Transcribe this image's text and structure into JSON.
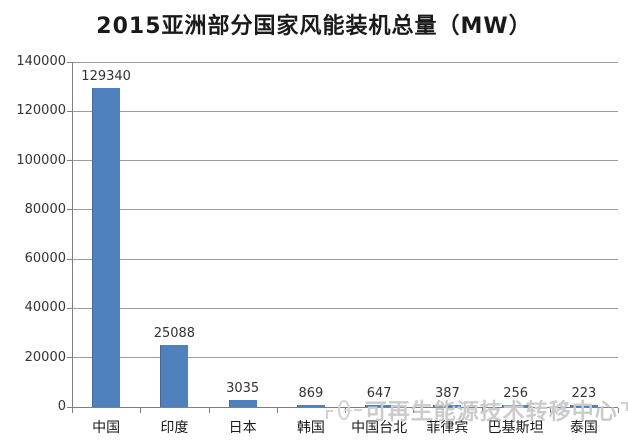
{
  "title": "2015亚洲部分国家风能装机总量（MW）",
  "watermark": {
    "text": "可再生能源技术转移中心"
  },
  "colors": {
    "bar": "#4f81bd",
    "gridline": "#9c9c9c",
    "axis": "#7f7f7f",
    "title_text": "#1a1a1a",
    "tick_text": "#333333",
    "category_text": "#1a1a1a",
    "value_text": "#333333",
    "watermark_text": "#cbcbcb",
    "background": "#ffffff"
  },
  "chart_data": {
    "type": "bar",
    "title": "2015亚洲部分国家风能装机总量（MW）",
    "categories": [
      "中国",
      "印度",
      "日本",
      "韩国",
      "中国台北",
      "菲律宾",
      "巴基斯坦",
      "泰国"
    ],
    "values": [
      129340,
      25088,
      3035,
      869,
      647,
      387,
      256,
      223
    ],
    "value_labels": [
      "129340",
      "25088",
      "3035",
      "869",
      "647",
      "387",
      "256",
      "223"
    ],
    "xlabel": "",
    "ylabel": "",
    "ylim": [
      0,
      140000
    ],
    "ytick_step": 20000,
    "ytick_labels": [
      "0",
      "20000",
      "40000",
      "60000",
      "80000",
      "100000",
      "120000",
      "140000"
    ],
    "grid": true,
    "legend_position": "none",
    "units": "MW"
  }
}
